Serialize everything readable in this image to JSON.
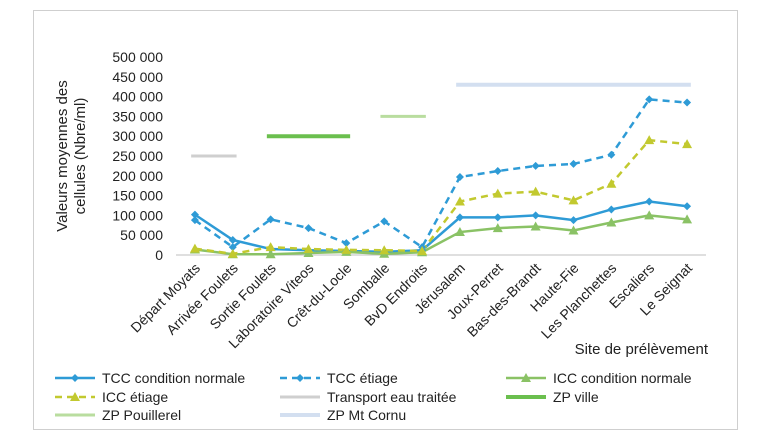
{
  "chart_data": {
    "type": "line",
    "xlabel": "Site de prélèvement",
    "ylabel": "Valeurs moyennes des cellules (Nbre/ml)",
    "ylim": [
      0,
      500000
    ],
    "yticks": [
      "0",
      "50 000",
      "100 000",
      "150 000",
      "200 000",
      "250 000",
      "300 000",
      "350 000",
      "400 000",
      "450 000",
      "500 000"
    ],
    "categories": [
      "Départ Moyats",
      "Arrivée Foulets",
      "Sortie Foulets",
      "Laboratoire Viteos",
      "Crêt-du-Locle",
      "Somballe",
      "BvD Endroits",
      "Jérusalem",
      "Joux-Perret",
      "Bas-des-Brandt",
      "Haute-Fie",
      "Les Planchettes",
      "Escaliers",
      "Le Seignat"
    ],
    "series": [
      {
        "name": "TCC condition normale",
        "color": "#2e9bd6",
        "dash": "solid",
        "marker": "diamond",
        "values": [
          102000,
          38000,
          15000,
          12000,
          10000,
          8000,
          12000,
          95000,
          95000,
          100000,
          88000,
          115000,
          135000,
          123000
        ]
      },
      {
        "name": "TCC étiage",
        "color": "#2e9bd6",
        "dash": "dashed",
        "marker": "diamond",
        "values": [
          88000,
          20000,
          90000,
          68000,
          30000,
          85000,
          20000,
          197000,
          212000,
          225000,
          230000,
          253000,
          393000,
          385000
        ]
      },
      {
        "name": "ICC condition normale",
        "color": "#8ac265",
        "dash": "solid",
        "marker": "triangle",
        "values": [
          14000,
          2000,
          2000,
          5000,
          8000,
          3000,
          7000,
          58000,
          68000,
          72000,
          62000,
          82000,
          100000,
          90000
        ]
      },
      {
        "name": "ICC étiage",
        "color": "#c2c92f",
        "dash": "dashed",
        "marker": "triangle",
        "values": [
          16000,
          3000,
          20000,
          15000,
          13000,
          12000,
          10000,
          135000,
          155000,
          160000,
          138000,
          180000,
          290000,
          280000
        ]
      }
    ],
    "zones": [
      {
        "name": "Transport eau traitée",
        "color": "#cfcfcf",
        "width": 3,
        "from": 0,
        "to": 1,
        "value": 250000
      },
      {
        "name": "ZP ville",
        "color": "#6bbf4e",
        "width": 4,
        "from": 2,
        "to": 4,
        "value": 300000
      },
      {
        "name": "ZP Pouillerel",
        "color": "#b9dd9f",
        "width": 3,
        "from": 5,
        "to": 6,
        "value": 350000
      },
      {
        "name": "ZP Mt Cornu",
        "color": "#d3dff0",
        "width": 4,
        "from": 7,
        "to": 13,
        "value": 430000
      }
    ]
  }
}
